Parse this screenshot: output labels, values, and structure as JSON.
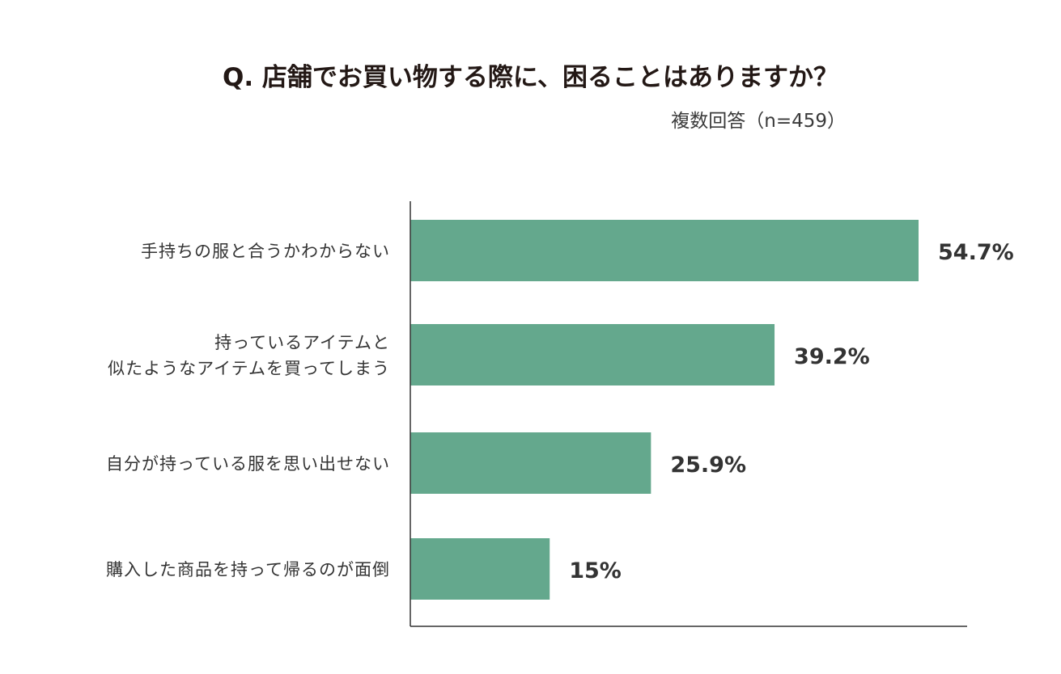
{
  "chart_data": {
    "type": "bar",
    "orientation": "horizontal",
    "title": "Q. 店舗でお買い物する際に、困ることはありますか？",
    "subtitle": "複数回答（n=459）",
    "categories": [
      [
        "手持ちの服と合うかわからない"
      ],
      [
        "持っているアイテムと",
        "似たようなアイテムを買ってしまう"
      ],
      [
        "自分が持っている服を思い出せない"
      ],
      [
        "購入した商品を持って帰るのが面倒"
      ]
    ],
    "values": [
      54.7,
      39.2,
      25.9,
      15
    ],
    "value_labels": [
      "54.7%",
      "39.2%",
      "25.9%",
      "15%"
    ],
    "xlim": [
      0,
      60
    ],
    "grid": false,
    "legend": "none",
    "bar_color": "#64a88d",
    "axis_color": "#333333"
  }
}
